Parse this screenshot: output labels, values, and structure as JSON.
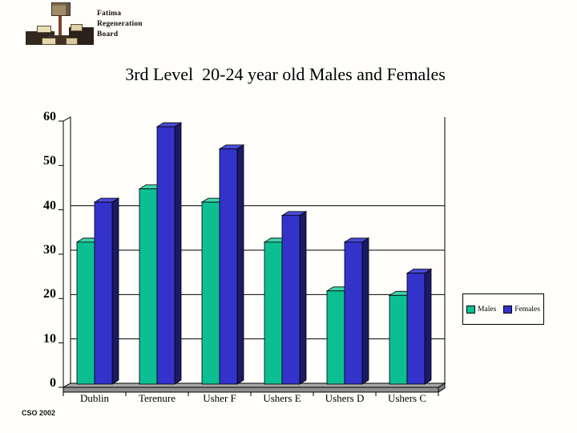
{
  "slide": {
    "title": "3rd Level  20-24 year old Males and Females",
    "footer": "CSO 2002"
  },
  "logo": {
    "name": "Fatima Regeneration Board",
    "text_lines": [
      "Fatima",
      "Regeneration",
      "Board"
    ]
  },
  "chart_data": {
    "type": "bar",
    "style": "3d-clustered",
    "title": "3rd Level  20-24 year old Males and Females",
    "categories": [
      "Dublin",
      "Terenure",
      "Usher F",
      "Ushers E",
      "Ushers D",
      "Ushers C"
    ],
    "series": [
      {
        "name": "Males",
        "color": "#0cbf92",
        "top_color": "#3fd2ab",
        "side_color": "#008060",
        "values": [
          32,
          44,
          41,
          32,
          21,
          20
        ]
      },
      {
        "name": "Females",
        "color": "#3333cc",
        "top_color": "#4a4ad8",
        "side_color": "#1a1a66",
        "values": [
          41,
          58,
          53,
          38,
          32,
          25
        ]
      }
    ],
    "xlabel": "",
    "ylabel": "",
    "ylim": [
      0,
      60
    ],
    "ytick_interval": 10,
    "yticks": [
      0,
      10,
      20,
      30,
      40,
      50,
      60
    ],
    "gridlines_at": [
      10,
      20,
      30,
      40
    ],
    "grid": true,
    "legend_position": "right-outside",
    "floor_color": "#a6a6a6"
  }
}
